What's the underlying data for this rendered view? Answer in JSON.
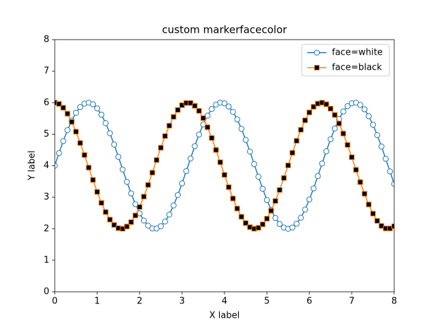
{
  "chart_data": {
    "type": "line",
    "title": "custom markerfacecolor",
    "xlabel": "X label",
    "ylabel": "Y label",
    "x": [
      0,
      0.1,
      0.2,
      0.3,
      0.4,
      0.5,
      0.6,
      0.7,
      0.8,
      0.9,
      1,
      1.1,
      1.2,
      1.3,
      1.4,
      1.5,
      1.6,
      1.7,
      1.8,
      1.9,
      2,
      2.1,
      2.2,
      2.3,
      2.4,
      2.5,
      2.6,
      2.7,
      2.8,
      2.9,
      3,
      3.1,
      3.2,
      3.3,
      3.4,
      3.5,
      3.6,
      3.7,
      3.8,
      3.9,
      4,
      4.1,
      4.2,
      4.3,
      4.4,
      4.5,
      4.6,
      4.7,
      4.8,
      4.9,
      5,
      5.1,
      5.2,
      5.3,
      5.4,
      5.5,
      5.6,
      5.7,
      5.8,
      5.9,
      6,
      6.1,
      6.2,
      6.3,
      6.4,
      6.5,
      6.6,
      6.7,
      6.8,
      6.9,
      7,
      7.1,
      7.2,
      7.3,
      7.4,
      7.5,
      7.6,
      7.7,
      7.8,
      7.9,
      8
    ],
    "series": [
      {
        "name": "face=white",
        "color": "#1f77b4",
        "marker": "circle",
        "markerfacecolor": "white",
        "values": [
          4.0,
          4.4,
          4.78,
          5.13,
          5.43,
          5.68,
          5.86,
          5.97,
          6.0,
          5.95,
          5.82,
          5.62,
          5.35,
          5.03,
          4.67,
          4.28,
          3.88,
          3.49,
          3.12,
          2.78,
          2.49,
          2.26,
          2.1,
          2.01,
          2.01,
          2.08,
          2.23,
          2.45,
          2.74,
          3.07,
          3.44,
          3.83,
          4.23,
          4.62,
          4.99,
          5.31,
          5.59,
          5.8,
          5.94,
          6.0,
          5.98,
          5.88,
          5.71,
          5.47,
          5.17,
          4.82,
          4.45,
          4.05,
          3.65,
          3.27,
          2.91,
          2.6,
          2.34,
          2.15,
          2.04,
          2.0,
          2.04,
          2.16,
          2.35,
          2.61,
          2.93,
          3.28,
          3.67,
          4.07,
          4.46,
          4.84,
          5.18,
          5.48,
          5.72,
          5.89,
          5.98,
          6.0,
          5.93,
          5.79,
          5.57,
          5.3,
          4.97,
          4.61,
          4.22,
          3.82,
          3.42
        ]
      },
      {
        "name": "face=black",
        "color": "#ff7f0e",
        "marker": "square",
        "markerfacecolor": "black",
        "values": [
          6.0,
          5.96,
          5.84,
          5.65,
          5.39,
          5.08,
          4.72,
          4.34,
          3.94,
          3.55,
          3.17,
          2.82,
          2.53,
          2.29,
          2.12,
          2.02,
          2.0,
          2.07,
          2.21,
          2.42,
          2.69,
          3.02,
          3.39,
          3.78,
          4.18,
          4.57,
          4.94,
          5.27,
          5.55,
          5.77,
          5.92,
          5.99,
          5.99,
          5.9,
          5.74,
          5.51,
          5.22,
          4.88,
          4.5,
          4.11,
          3.71,
          3.32,
          2.96,
          2.64,
          2.38,
          2.18,
          2.05,
          2.0,
          2.03,
          2.14,
          2.32,
          2.57,
          2.88,
          3.23,
          3.61,
          4.01,
          4.41,
          4.79,
          5.14,
          5.44,
          5.69,
          5.87,
          5.97,
          6.0,
          5.95,
          5.81,
          5.61,
          5.34,
          5.02,
          4.66,
          4.27,
          3.87,
          3.48,
          3.11,
          2.77,
          2.48,
          2.25,
          2.09,
          2.01,
          2.01,
          2.08
        ]
      }
    ],
    "xlim": [
      0,
      8
    ],
    "ylim": [
      0,
      8
    ],
    "xticks": [
      0,
      1,
      2,
      3,
      4,
      5,
      6,
      7,
      8
    ],
    "yticks": [
      0,
      1,
      2,
      3,
      4,
      5,
      6,
      7,
      8
    ],
    "grid": false,
    "legend": "upper right"
  }
}
